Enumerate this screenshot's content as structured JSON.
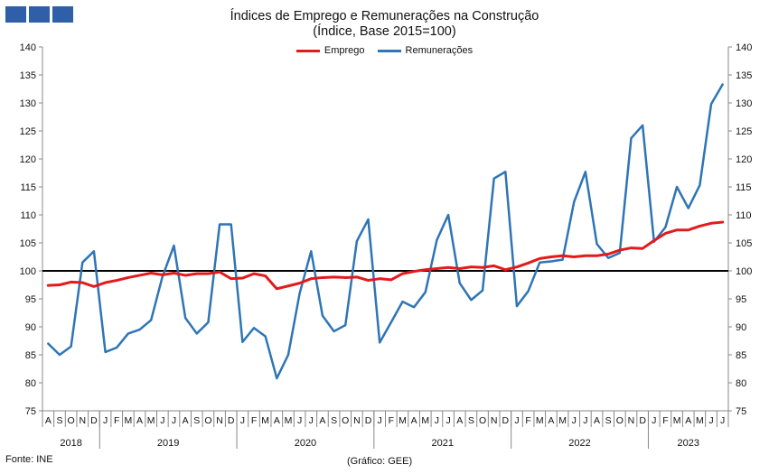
{
  "header": {
    "title": "Índices de Emprego e Remunerações na Construção",
    "subtitle": "(Índice, Base 2015=100)"
  },
  "footer": {
    "source": "Fonte: INE",
    "credit": "(Gráfico: GEE)"
  },
  "chart_data": {
    "type": "line",
    "title": "Índices de Emprego e Remunerações na Construção",
    "subtitle": "(Índice, Base 2015=100)",
    "ylim": [
      75,
      140
    ],
    "yticks": [
      75,
      80,
      85,
      90,
      95,
      100,
      105,
      110,
      115,
      120,
      125,
      130,
      135,
      140
    ],
    "reference_line": 100,
    "legend_position": "top-center",
    "grid": false,
    "x": [
      "A",
      "S",
      "O",
      "N",
      "D",
      "J",
      "F",
      "M",
      "A",
      "M",
      "J",
      "J",
      "A",
      "S",
      "O",
      "N",
      "D",
      "J",
      "F",
      "M",
      "A",
      "M",
      "J",
      "J",
      "A",
      "S",
      "O",
      "N",
      "D",
      "J",
      "F",
      "M",
      "A",
      "M",
      "J",
      "J",
      "A",
      "S",
      "O",
      "N",
      "D",
      "J",
      "F",
      "M",
      "A",
      "M",
      "J",
      "J",
      "A",
      "S",
      "O",
      "N",
      "D",
      "J",
      "F",
      "M",
      "A",
      "M",
      "J",
      "J"
    ],
    "years": [
      {
        "label": "2018",
        "start": 0,
        "count": 5
      },
      {
        "label": "2019",
        "start": 5,
        "count": 12
      },
      {
        "label": "2020",
        "start": 17,
        "count": 12
      },
      {
        "label": "2021",
        "start": 29,
        "count": 12
      },
      {
        "label": "2022",
        "start": 41,
        "count": 12
      },
      {
        "label": "2023",
        "start": 53,
        "count": 7
      }
    ],
    "series": [
      {
        "name": "Emprego",
        "color": "#e31a1c",
        "values": [
          97.4,
          97.5,
          98.0,
          97.9,
          97.2,
          97.9,
          98.3,
          98.8,
          99.2,
          99.6,
          99.3,
          99.6,
          99.2,
          99.5,
          99.5,
          99.8,
          98.6,
          98.7,
          99.5,
          99.1,
          96.8,
          97.3,
          97.8,
          98.6,
          98.8,
          98.9,
          98.8,
          98.9,
          98.3,
          98.6,
          98.4,
          99.5,
          99.9,
          100.2,
          100.4,
          100.6,
          100.4,
          100.7,
          100.6,
          100.9,
          100.2,
          100.7,
          101.4,
          102.2,
          102.5,
          102.7,
          102.5,
          102.7,
          102.7,
          103.0,
          103.7,
          104.1,
          104.0,
          105.4,
          106.7,
          107.3,
          107.3,
          108.0,
          108.5,
          108.7
        ]
      },
      {
        "name": "Remunerações",
        "color": "#2e75b6",
        "values": [
          87.0,
          85.0,
          86.5,
          101.5,
          103.5,
          85.5,
          86.3,
          88.8,
          89.5,
          91.2,
          99.0,
          104.5,
          91.6,
          88.8,
          90.8,
          108.3,
          108.3,
          87.3,
          89.8,
          88.3,
          80.8,
          85.0,
          96.0,
          103.5,
          92.0,
          89.2,
          90.3,
          105.3,
          109.2,
          87.2,
          90.8,
          94.5,
          93.5,
          96.2,
          105.5,
          110.0,
          97.8,
          94.8,
          96.5,
          116.5,
          117.7,
          93.7,
          96.4,
          101.5,
          101.7,
          102.0,
          112.3,
          117.7,
          104.8,
          102.3,
          103.2,
          123.7,
          126.0,
          105.2,
          107.8,
          115.0,
          111.2,
          115.3,
          129.8,
          133.3
        ]
      }
    ]
  }
}
